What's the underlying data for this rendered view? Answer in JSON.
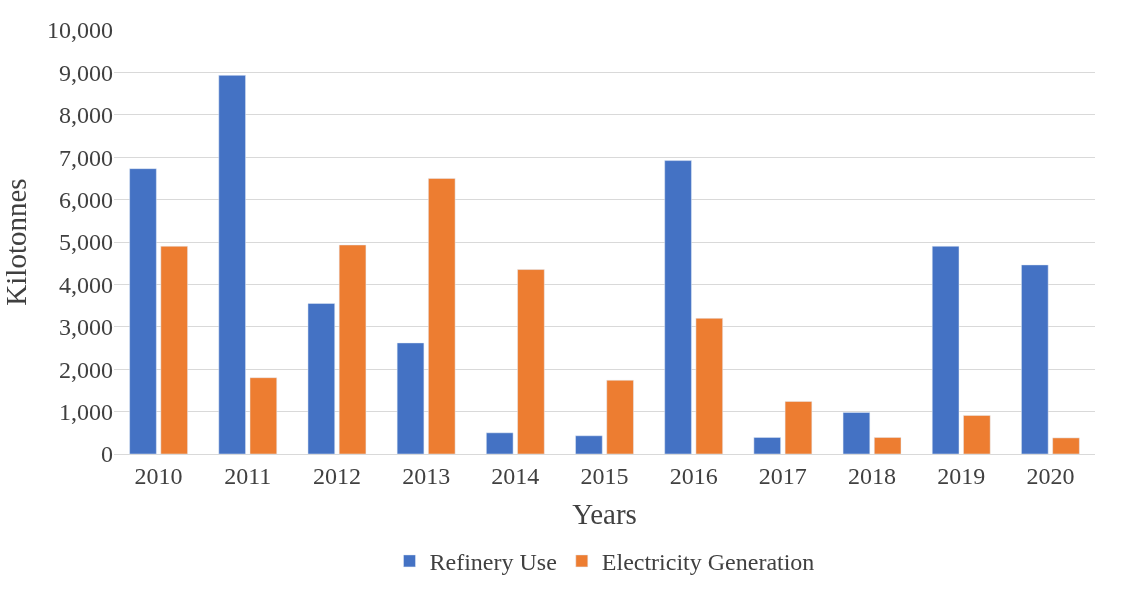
{
  "chart_data": {
    "type": "bar",
    "xlabel": "Years",
    "ylabel": "Kilotonnes",
    "categories": [
      "2010",
      "2011",
      "2012",
      "2013",
      "2014",
      "2015",
      "2016",
      "2017",
      "2018",
      "2019",
      "2020"
    ],
    "series": [
      {
        "name": "Refinery Use",
        "color": "#4472c4",
        "values": [
          6730,
          8930,
          3550,
          2620,
          500,
          430,
          6920,
          390,
          980,
          4900,
          4460
        ]
      },
      {
        "name": "Electricity Generation",
        "color": "#ed7d31",
        "values": [
          4900,
          1800,
          4930,
          6500,
          4350,
          1740,
          3200,
          1240,
          390,
          910,
          380
        ]
      }
    ],
    "ylim": [
      0,
      10000
    ],
    "yticks": [
      {
        "value": 0,
        "label": "0"
      },
      {
        "value": 1000,
        "label": "1,000"
      },
      {
        "value": 2000,
        "label": "2,000"
      },
      {
        "value": 3000,
        "label": "3,000"
      },
      {
        "value": 4000,
        "label": "4,000"
      },
      {
        "value": 5000,
        "label": "5,000"
      },
      {
        "value": 6000,
        "label": "6,000"
      },
      {
        "value": 7000,
        "label": "7,000"
      },
      {
        "value": 8000,
        "label": "8,000"
      },
      {
        "value": 9000,
        "label": "9,000"
      },
      {
        "value": 10000,
        "label": "10,000"
      }
    ],
    "grid": "y",
    "legend": "bottom"
  }
}
